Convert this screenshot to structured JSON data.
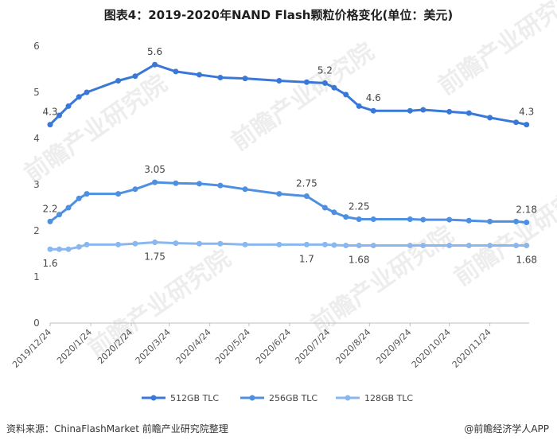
{
  "title": "图表4：2019-2020年NAND Flash颗粒价格变化(单位：美元)",
  "source": "资料来源：ChinaFlashMarket 前瞻产业研究院整理",
  "brand": "@前瞻经济学人APP",
  "watermark": "前瞻产业研究院",
  "chart_data": {
    "type": "line",
    "title": "图表4：2019-2020年NAND Flash颗粒价格变化(单位：美元)",
    "ylim": [
      0,
      6
    ],
    "yticks": [
      0,
      1,
      2,
      3,
      4,
      5,
      6
    ],
    "grid": false,
    "legend_position": "bottom",
    "x_tick_labels": [
      "2019/12/24",
      "2020/1/24",
      "2020/2/24",
      "2020/3/24",
      "2020/4/24",
      "2020/5/24",
      "2020/6/24",
      "2020/7/24",
      "2020/8/24",
      "2020/9/24",
      "2020/10/24",
      "2020/11/24"
    ],
    "x_tick_days": [
      0,
      31,
      62,
      91,
      122,
      152,
      183,
      213,
      244,
      275,
      305,
      336
    ],
    "x_range_days": [
      0,
      366
    ],
    "series": [
      {
        "name": "512GB TLC",
        "color": "#3a78d8",
        "x_days": [
          0,
          7,
          14,
          22,
          28,
          52,
          65,
          80,
          96,
          114,
          130,
          149,
          175,
          196,
          210,
          217,
          226,
          236,
          247,
          275,
          285,
          305,
          320,
          336,
          356,
          364
        ],
        "values": [
          4.3,
          4.5,
          4.7,
          4.9,
          5.0,
          5.25,
          5.35,
          5.6,
          5.45,
          5.38,
          5.32,
          5.3,
          5.25,
          5.22,
          5.2,
          5.1,
          4.95,
          4.7,
          4.6,
          4.6,
          4.62,
          4.58,
          4.55,
          4.45,
          4.35,
          4.3
        ],
        "labels": [
          {
            "index": 0,
            "text": "4.3",
            "pos": "above"
          },
          {
            "index": 7,
            "text": "5.6",
            "pos": "above"
          },
          {
            "index": 14,
            "text": "5.2",
            "pos": "above"
          },
          {
            "index": 18,
            "text": "4.6",
            "pos": "above"
          },
          {
            "index": 25,
            "text": "4.3",
            "pos": "above"
          }
        ]
      },
      {
        "name": "256GB TLC",
        "color": "#4d8fe0",
        "x_days": [
          0,
          7,
          14,
          22,
          28,
          52,
          65,
          80,
          96,
          114,
          130,
          149,
          175,
          196,
          210,
          217,
          226,
          236,
          247,
          275,
          285,
          305,
          320,
          336,
          356,
          364
        ],
        "values": [
          2.2,
          2.35,
          2.5,
          2.7,
          2.8,
          2.8,
          2.9,
          3.05,
          3.03,
          3.02,
          2.98,
          2.9,
          2.8,
          2.75,
          2.5,
          2.4,
          2.3,
          2.25,
          2.25,
          2.25,
          2.24,
          2.24,
          2.22,
          2.2,
          2.2,
          2.18
        ],
        "labels": [
          {
            "index": 0,
            "text": "2.2",
            "pos": "above"
          },
          {
            "index": 7,
            "text": "3.05",
            "pos": "above"
          },
          {
            "index": 13,
            "text": "2.75",
            "pos": "above"
          },
          {
            "index": 17,
            "text": "2.25",
            "pos": "above"
          },
          {
            "index": 25,
            "text": "2.18",
            "pos": "above"
          }
        ]
      },
      {
        "name": "128GB TLC",
        "color": "#8ab8ee",
        "x_days": [
          0,
          7,
          14,
          22,
          28,
          52,
          65,
          80,
          96,
          114,
          130,
          149,
          175,
          196,
          210,
          217,
          226,
          236,
          247,
          275,
          285,
          305,
          320,
          336,
          356,
          364
        ],
        "values": [
          1.6,
          1.6,
          1.6,
          1.65,
          1.7,
          1.7,
          1.72,
          1.75,
          1.73,
          1.72,
          1.72,
          1.7,
          1.7,
          1.7,
          1.7,
          1.69,
          1.68,
          1.68,
          1.68,
          1.68,
          1.68,
          1.68,
          1.68,
          1.68,
          1.68,
          1.68
        ],
        "labels": [
          {
            "index": 0,
            "text": "1.6",
            "pos": "below"
          },
          {
            "index": 7,
            "text": "1.75",
            "pos": "below"
          },
          {
            "index": 13,
            "text": "1.7",
            "pos": "below"
          },
          {
            "index": 17,
            "text": "1.68",
            "pos": "below"
          },
          {
            "index": 25,
            "text": "1.68",
            "pos": "below"
          }
        ]
      }
    ]
  }
}
